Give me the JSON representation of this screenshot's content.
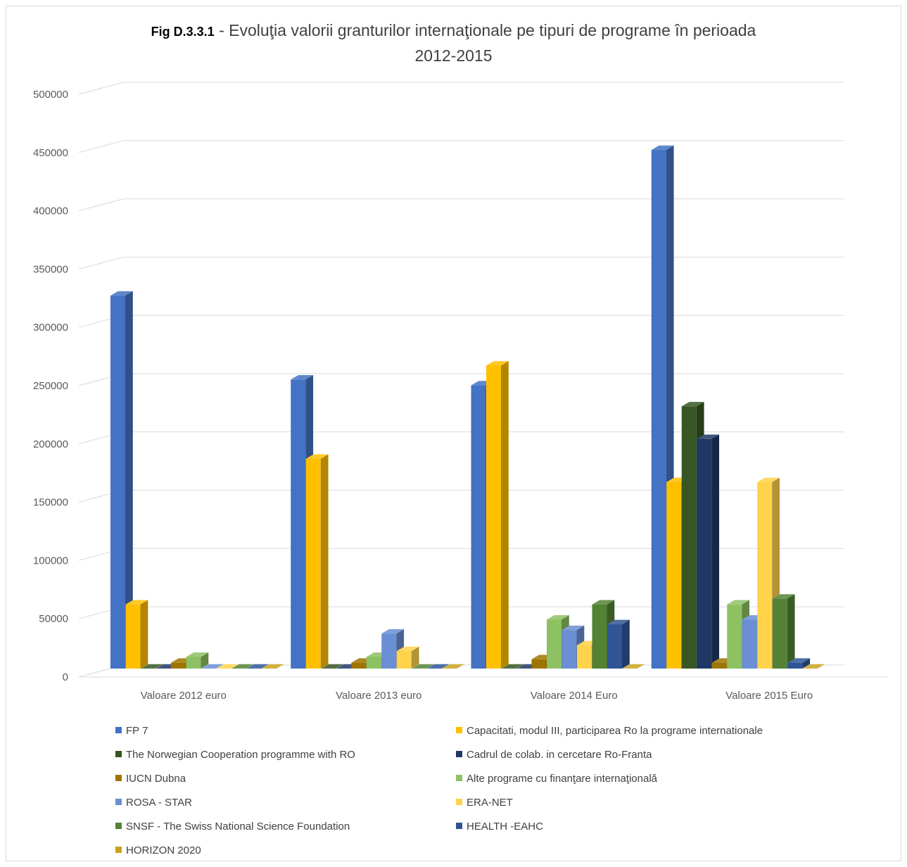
{
  "header": {
    "code": "Fig D.3.3.1",
    "title_line1": " - Evoluţia valorii granturilor internaţionale pe tipuri de programe în perioada",
    "title_line2": "2012-2015"
  },
  "chart_data": {
    "type": "bar",
    "variant": "3d-clustered-column",
    "title": "Fig D.3.3.1 - Evoluţia valorii granturilor internaţionale pe tipuri de programe în perioada 2012-2015",
    "xlabel": "",
    "ylabel": "",
    "ylim": [
      0,
      500000
    ],
    "yticks": [
      0,
      50000,
      100000,
      150000,
      200000,
      250000,
      300000,
      350000,
      400000,
      450000,
      500000
    ],
    "ytick_labels": [
      "0",
      "50000",
      "100000",
      "150000",
      "200000",
      "250000",
      "300000",
      "350000",
      "400000",
      "450000",
      "500000"
    ],
    "grid": true,
    "legend_position": "bottom",
    "categories": [
      "Valoare 2012 euro",
      "Valoare 2013 euro",
      "Valoare 2014 Euro",
      "Valoare 2015 Euro"
    ],
    "series": [
      {
        "name": "FP 7",
        "color": "#4472c4",
        "values": [
          320000,
          248000,
          243000,
          445000
        ]
      },
      {
        "name": "Capacitati, modul III, participarea Ro la programe internationale",
        "color": "#ffc000",
        "values": [
          55000,
          180000,
          260000,
          160000
        ]
      },
      {
        "name": "The Norwegian Cooperation programme with RO",
        "color": "#375623",
        "values": [
          0,
          0,
          0,
          225000
        ]
      },
      {
        "name": "Cadrul de colab. in cercetare Ro-Franta",
        "color": "#203864",
        "values": [
          0,
          0,
          0,
          197000
        ]
      },
      {
        "name": "IUCN Dubna",
        "color": "#9e7400",
        "values": [
          5000,
          5000,
          8000,
          5000
        ]
      },
      {
        "name": "Alte programe cu finanţare internaţională",
        "color": "#8dc162",
        "values": [
          10000,
          10000,
          42000,
          55000
        ]
      },
      {
        "name": "ROSA - STAR",
        "color": "#6a8fd4",
        "values": [
          0,
          30000,
          33000,
          42000
        ]
      },
      {
        "name": "ERA-NET",
        "color": "#ffd34a",
        "values": [
          0,
          15000,
          20000,
          160000
        ]
      },
      {
        "name": "SNSF - The Swiss National Science Foundation",
        "color": "#548235",
        "values": [
          0,
          0,
          55000,
          60000
        ]
      },
      {
        "name": "HEALTH -EAHC",
        "color": "#2f5597",
        "values": [
          0,
          0,
          38000,
          5000
        ]
      },
      {
        "name": "HORIZON 2020",
        "color": "#c9a21e",
        "values": [
          0,
          0,
          0,
          0
        ]
      }
    ]
  }
}
